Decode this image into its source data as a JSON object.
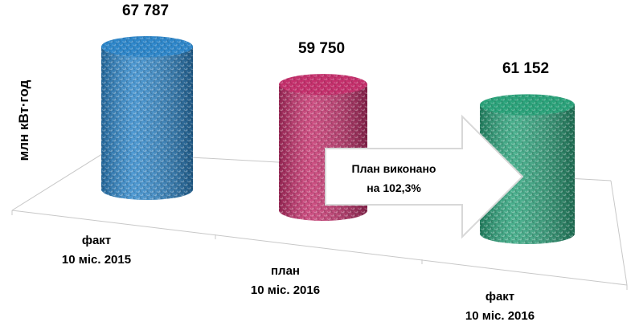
{
  "chart_data": {
    "type": "bar",
    "y_label": "млн кВт·год",
    "annotation": "План виконано\nна 102,3%",
    "categories": [
      "факт\n10 міс.  2015",
      "план\n10 міс.  2016",
      "факт\n10 міс.  2016"
    ],
    "values": [
      67787,
      59750,
      61152
    ],
    "value_labels": [
      "67 787",
      "59 750",
      "61 152"
    ],
    "colors": [
      "#2e86c9",
      "#c4306c",
      "#2ba27a"
    ]
  }
}
